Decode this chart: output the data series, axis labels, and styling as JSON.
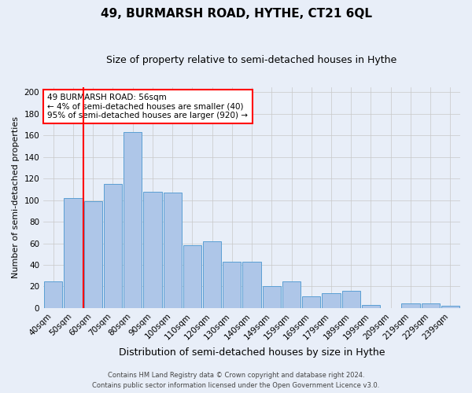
{
  "title": "49, BURMARSH ROAD, HYTHE, CT21 6QL",
  "subtitle": "Size of property relative to semi-detached houses in Hythe",
  "xlabel": "Distribution of semi-detached houses by size in Hythe",
  "ylabel": "Number of semi-detached properties",
  "footer1": "Contains HM Land Registry data © Crown copyright and database right 2024.",
  "footer2": "Contains public sector information licensed under the Open Government Licence v3.0.",
  "categories": [
    "40sqm",
    "50sqm",
    "60sqm",
    "70sqm",
    "80sqm",
    "90sqm",
    "100sqm",
    "110sqm",
    "120sqm",
    "130sqm",
    "140sqm",
    "149sqm",
    "159sqm",
    "169sqm",
    "179sqm",
    "189sqm",
    "199sqm",
    "209sqm",
    "219sqm",
    "229sqm",
    "239sqm"
  ],
  "values": [
    25,
    102,
    99,
    115,
    163,
    108,
    107,
    58,
    62,
    43,
    43,
    20,
    25,
    11,
    14,
    16,
    3,
    0,
    4,
    4,
    2
  ],
  "bar_color": "#aec6e8",
  "bar_edge_color": "#5a9fd4",
  "vline_x": 1.5,
  "vline_color": "red",
  "annotation_text": "49 BURMARSH ROAD: 56sqm\n← 4% of semi-detached houses are smaller (40)\n95% of semi-detached houses are larger (920) →",
  "annotation_box_color": "white",
  "annotation_box_edge": "red",
  "ylim": [
    0,
    205
  ],
  "yticks": [
    0,
    20,
    40,
    60,
    80,
    100,
    120,
    140,
    160,
    180,
    200
  ],
  "background_color": "#e8eef8",
  "grid_color": "#c8c8c8",
  "title_fontsize": 11,
  "subtitle_fontsize": 9,
  "xlabel_fontsize": 9,
  "ylabel_fontsize": 8,
  "tick_fontsize": 7.5,
  "annot_fontsize": 7.5,
  "footer_fontsize": 6
}
